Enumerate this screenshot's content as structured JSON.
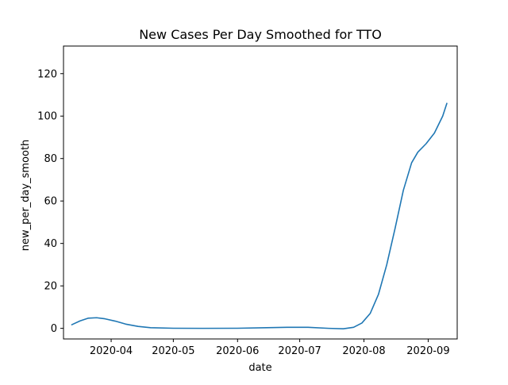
{
  "chart_data": {
    "type": "line",
    "title": "New Cases Per Day Smoothed for TTO",
    "xlabel": "date",
    "ylabel": "new_per_day_smooth",
    "x_axis_type": "date",
    "xlim": [
      "2020-03-09",
      "2020-09-15"
    ],
    "ylim": [
      -5,
      133
    ],
    "xticks": [
      "2020-04-01",
      "2020-05-01",
      "2020-06-01",
      "2020-07-01",
      "2020-08-01",
      "2020-09-01"
    ],
    "xtick_labels": [
      "2020-04",
      "2020-05",
      "2020-06",
      "2020-07",
      "2020-08",
      "2020-09"
    ],
    "yticks": [
      0,
      20,
      40,
      60,
      80,
      100,
      120
    ],
    "ytick_labels": [
      "0",
      "20",
      "40",
      "60",
      "80",
      "100",
      "120"
    ],
    "grid": false,
    "series": [
      {
        "color": "#1f77b4",
        "points": [
          {
            "x": "2020-03-13",
            "y": 1.7
          },
          {
            "x": "2020-03-17",
            "y": 3.5
          },
          {
            "x": "2020-03-21",
            "y": 4.8
          },
          {
            "x": "2020-03-25",
            "y": 5.0
          },
          {
            "x": "2020-03-29",
            "y": 4.5
          },
          {
            "x": "2020-04-03",
            "y": 3.4
          },
          {
            "x": "2020-04-08",
            "y": 2.0
          },
          {
            "x": "2020-04-14",
            "y": 0.9
          },
          {
            "x": "2020-04-20",
            "y": 0.3
          },
          {
            "x": "2020-05-01",
            "y": 0.05
          },
          {
            "x": "2020-05-15",
            "y": 0.0
          },
          {
            "x": "2020-06-01",
            "y": 0.05
          },
          {
            "x": "2020-06-15",
            "y": 0.3
          },
          {
            "x": "2020-06-25",
            "y": 0.5
          },
          {
            "x": "2020-07-05",
            "y": 0.5
          },
          {
            "x": "2020-07-15",
            "y": 0.0
          },
          {
            "x": "2020-07-22",
            "y": -0.2
          },
          {
            "x": "2020-07-27",
            "y": 0.5
          },
          {
            "x": "2020-07-31",
            "y": 2.5
          },
          {
            "x": "2020-08-04",
            "y": 7.0
          },
          {
            "x": "2020-08-08",
            "y": 16.0
          },
          {
            "x": "2020-08-12",
            "y": 30.0
          },
          {
            "x": "2020-08-16",
            "y": 47.0
          },
          {
            "x": "2020-08-20",
            "y": 65.0
          },
          {
            "x": "2020-08-24",
            "y": 78.0
          },
          {
            "x": "2020-08-27",
            "y": 83.0
          },
          {
            "x": "2020-08-31",
            "y": 87.0
          },
          {
            "x": "2020-09-04",
            "y": 92.0
          },
          {
            "x": "2020-09-08",
            "y": 100.0
          },
          {
            "x": "2020-09-10",
            "y": 106.0
          }
        ]
      }
    ]
  }
}
